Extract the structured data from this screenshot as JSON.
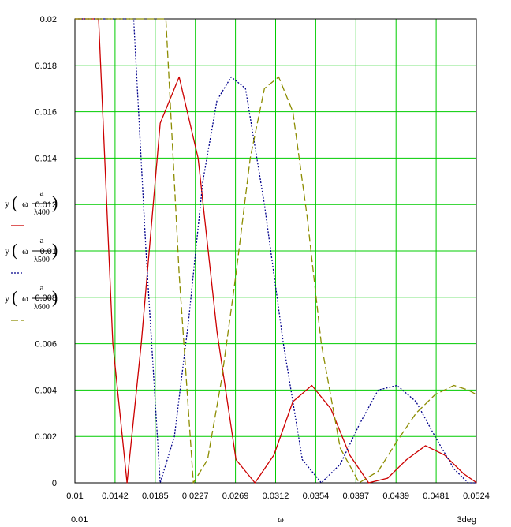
{
  "chart_data": {
    "type": "line",
    "x_ticks": [
      "0.01",
      "0.0142",
      "0.0185",
      "0.0227",
      "0.0269",
      "0.0312",
      "0.0354",
      "0.0397",
      "0.0439",
      "0.0481",
      "0.0524"
    ],
    "y_ticks": [
      "0",
      "0.002",
      "0.004",
      "0.006",
      "0.008",
      "0.01",
      "0.012",
      "0.014",
      "0.016",
      "0.018",
      "0.02"
    ],
    "xlim": [
      0.01,
      0.05236
    ],
    "ylim": [
      0,
      0.02
    ],
    "x_range_left": "0.01",
    "x_range_right": "3deg",
    "xlabel": "ω",
    "grid": true,
    "legend": {
      "placement": "left",
      "entries": [
        {
          "fn": "y",
          "arg": "ω",
          "num": "a",
          "den": "λ400"
        },
        {
          "fn": "y",
          "arg": "ω",
          "num": "a",
          "den": "λ500"
        },
        {
          "fn": "y",
          "arg": "ω",
          "num": "a",
          "den": "λ600"
        }
      ]
    },
    "series": [
      {
        "color": "#cc0000",
        "dash": "solid",
        "x": [
          0.01,
          0.0125,
          0.014,
          0.0155,
          0.017,
          0.019,
          0.021,
          0.023,
          0.025,
          0.027,
          0.029,
          0.031,
          0.033,
          0.035,
          0.037,
          0.039,
          0.041,
          0.043,
          0.045,
          0.047,
          0.049,
          0.051,
          0.0524
        ],
        "y": [
          0.02,
          0.02,
          0.006,
          0.0,
          0.006,
          0.0155,
          0.0175,
          0.014,
          0.0065,
          0.001,
          0.0,
          0.0012,
          0.0035,
          0.0042,
          0.0032,
          0.0012,
          0.0,
          0.0002,
          0.001,
          0.0016,
          0.0012,
          0.0004,
          0.0
        ]
      },
      {
        "color": "#00008b",
        "dash": "dotted",
        "x": [
          0.01,
          0.0162,
          0.0175,
          0.019,
          0.0205,
          0.022,
          0.0235,
          0.025,
          0.0265,
          0.028,
          0.03,
          0.032,
          0.034,
          0.036,
          0.038,
          0.04,
          0.042,
          0.044,
          0.046,
          0.048,
          0.05,
          0.0515,
          0.0524
        ],
        "y": [
          0.02,
          0.02,
          0.01,
          0.0,
          0.002,
          0.007,
          0.013,
          0.0165,
          0.0175,
          0.017,
          0.012,
          0.006,
          0.001,
          0.0,
          0.0008,
          0.0025,
          0.004,
          0.0042,
          0.0035,
          0.002,
          0.0006,
          0.0,
          0.0
        ]
      },
      {
        "color": "#8c8c00",
        "dash": "dashed",
        "x": [
          0.01,
          0.0196,
          0.021,
          0.0225,
          0.024,
          0.0255,
          0.027,
          0.0285,
          0.03,
          0.0315,
          0.033,
          0.0345,
          0.036,
          0.038,
          0.04,
          0.042,
          0.044,
          0.046,
          0.048,
          0.05,
          0.0515,
          0.0524
        ],
        "y": [
          0.02,
          0.02,
          0.009,
          0.0,
          0.001,
          0.0045,
          0.009,
          0.014,
          0.017,
          0.0175,
          0.016,
          0.0115,
          0.006,
          0.0015,
          0.0,
          0.0005,
          0.0018,
          0.003,
          0.0038,
          0.0042,
          0.004,
          0.0038
        ]
      }
    ]
  }
}
